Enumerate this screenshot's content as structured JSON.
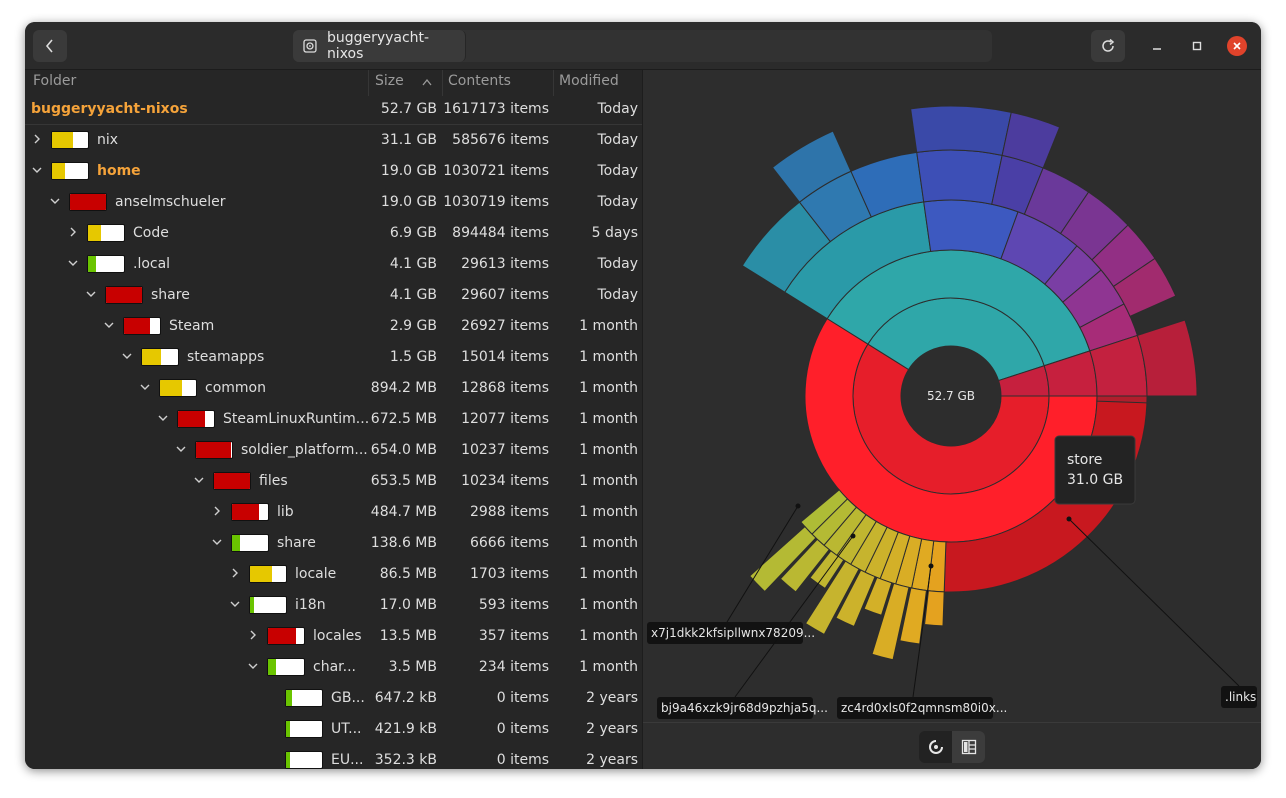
{
  "window": {
    "location_tab": "buggeryyacht-nixos"
  },
  "columns": {
    "folder": "Folder",
    "size": "Size",
    "contents": "Contents",
    "modified": "Modified"
  },
  "root": {
    "name": "buggeryyacht-nixos",
    "size": "52.7 GB",
    "contents": "1617173 items",
    "modified": "Today"
  },
  "rows": [
    {
      "name": "nix",
      "size": "31.1 GB",
      "contents": "585676 items",
      "modified": "Today",
      "depth": 0,
      "expand": "collapsed",
      "fill": 0.59,
      "color": "#e6c800",
      "highlight": false
    },
    {
      "name": "home",
      "size": "19.0 GB",
      "contents": "1030721 items",
      "modified": "Today",
      "depth": 0,
      "expand": "expanded",
      "fill": 0.36,
      "color": "#e6c800",
      "highlight": true
    },
    {
      "name": "anselmschueler",
      "size": "19.0 GB",
      "contents": "1030719 items",
      "modified": "Today",
      "depth": 1,
      "expand": "expanded",
      "fill": 1.0,
      "color": "#c80000",
      "highlight": false
    },
    {
      "name": "Code",
      "size": "6.9 GB",
      "contents": "894484 items",
      "modified": "5 days",
      "depth": 2,
      "expand": "collapsed",
      "fill": 0.36,
      "color": "#e6c800",
      "highlight": false
    },
    {
      "name": ".local",
      "size": "4.1 GB",
      "contents": "29613 items",
      "modified": "Today",
      "depth": 2,
      "expand": "expanded",
      "fill": 0.22,
      "color": "#6ac400",
      "highlight": false
    },
    {
      "name": "share",
      "size": "4.1 GB",
      "contents": "29607 items",
      "modified": "Today",
      "depth": 3,
      "expand": "expanded",
      "fill": 1.0,
      "color": "#c80000",
      "highlight": false
    },
    {
      "name": "Steam",
      "size": "2.9 GB",
      "contents": "26927 items",
      "modified": "1 month",
      "depth": 4,
      "expand": "expanded",
      "fill": 0.72,
      "color": "#c80000",
      "highlight": false
    },
    {
      "name": "steamapps",
      "size": "1.5 GB",
      "contents": "15014 items",
      "modified": "1 month",
      "depth": 5,
      "expand": "expanded",
      "fill": 0.52,
      "color": "#e6c800",
      "highlight": false
    },
    {
      "name": "common",
      "size": "894.2 MB",
      "contents": "12868 items",
      "modified": "1 month",
      "depth": 6,
      "expand": "expanded",
      "fill": 0.6,
      "color": "#e6c800",
      "highlight": false
    },
    {
      "name": "SteamLinuxRuntim...",
      "size": "672.5 MB",
      "contents": "12077 items",
      "modified": "1 month",
      "depth": 7,
      "expand": "expanded",
      "fill": 0.75,
      "color": "#c80000",
      "highlight": false
    },
    {
      "name": "soldier_platform...",
      "size": "654.0 MB",
      "contents": "10237 items",
      "modified": "1 month",
      "depth": 8,
      "expand": "expanded",
      "fill": 0.97,
      "color": "#c80000",
      "highlight": false
    },
    {
      "name": "files",
      "size": "653.5 MB",
      "contents": "10234 items",
      "modified": "1 month",
      "depth": 9,
      "expand": "expanded",
      "fill": 1.0,
      "color": "#c80000",
      "highlight": false
    },
    {
      "name": "lib",
      "size": "484.7 MB",
      "contents": "2988 items",
      "modified": "1 month",
      "depth": 10,
      "expand": "collapsed",
      "fill": 0.74,
      "color": "#c80000",
      "highlight": false
    },
    {
      "name": "share",
      "size": "138.6 MB",
      "contents": "6666 items",
      "modified": "1 month",
      "depth": 10,
      "expand": "expanded",
      "fill": 0.21,
      "color": "#6ac400",
      "highlight": false
    },
    {
      "name": "locale",
      "size": "86.5 MB",
      "contents": "1703 items",
      "modified": "1 month",
      "depth": 11,
      "expand": "collapsed",
      "fill": 0.62,
      "color": "#e6c800",
      "highlight": false
    },
    {
      "name": "i18n",
      "size": "17.0 MB",
      "contents": "593 items",
      "modified": "1 month",
      "depth": 11,
      "expand": "expanded",
      "fill": 0.12,
      "color": "#6ac400",
      "highlight": false
    },
    {
      "name": "locales",
      "size": "13.5 MB",
      "contents": "357 items",
      "modified": "1 month",
      "depth": 12,
      "expand": "collapsed",
      "fill": 0.79,
      "color": "#c80000",
      "highlight": false
    },
    {
      "name": "char...",
      "size": "3.5 MB",
      "contents": "234 items",
      "modified": "1 month",
      "depth": 12,
      "expand": "expanded",
      "fill": 0.21,
      "color": "#6ac400",
      "highlight": false
    },
    {
      "name": "GB...",
      "size": "647.2 kB",
      "contents": "0 items",
      "modified": "2 years",
      "depth": 13,
      "expand": "none",
      "fill": 0.18,
      "color": "#6ac400",
      "highlight": false
    },
    {
      "name": "UT...",
      "size": "421.9 kB",
      "contents": "0 items",
      "modified": "2 years",
      "depth": 13,
      "expand": "none",
      "fill": 0.12,
      "color": "#6ac400",
      "highlight": false
    },
    {
      "name": "EU...",
      "size": "352.3 kB",
      "contents": "0 items",
      "modified": "2 years",
      "depth": 13,
      "expand": "none",
      "fill": 0.1,
      "color": "#6ac400",
      "highlight": false
    }
  ],
  "chart": {
    "center_label": "52.7 GB",
    "tooltip": {
      "name": "store",
      "size": "31.0 GB"
    },
    "labels": [
      "x7j1dkk2kfsipllwnx78209...",
      "bj9a46xzk9jr68d9pzhja5q...",
      "zc4rd0xls0f2qmnsm80i0x...",
      ".links"
    ]
  },
  "icons": {
    "back": "chevron-left-icon",
    "disk": "disk-icon",
    "refresh": "refresh-icon",
    "minimize": "minimize-icon",
    "maximize": "maximize-icon",
    "close": "close-icon",
    "sort": "sort-ascending-icon",
    "rings": "rings-chart-icon",
    "treemap": "treemap-icon"
  }
}
